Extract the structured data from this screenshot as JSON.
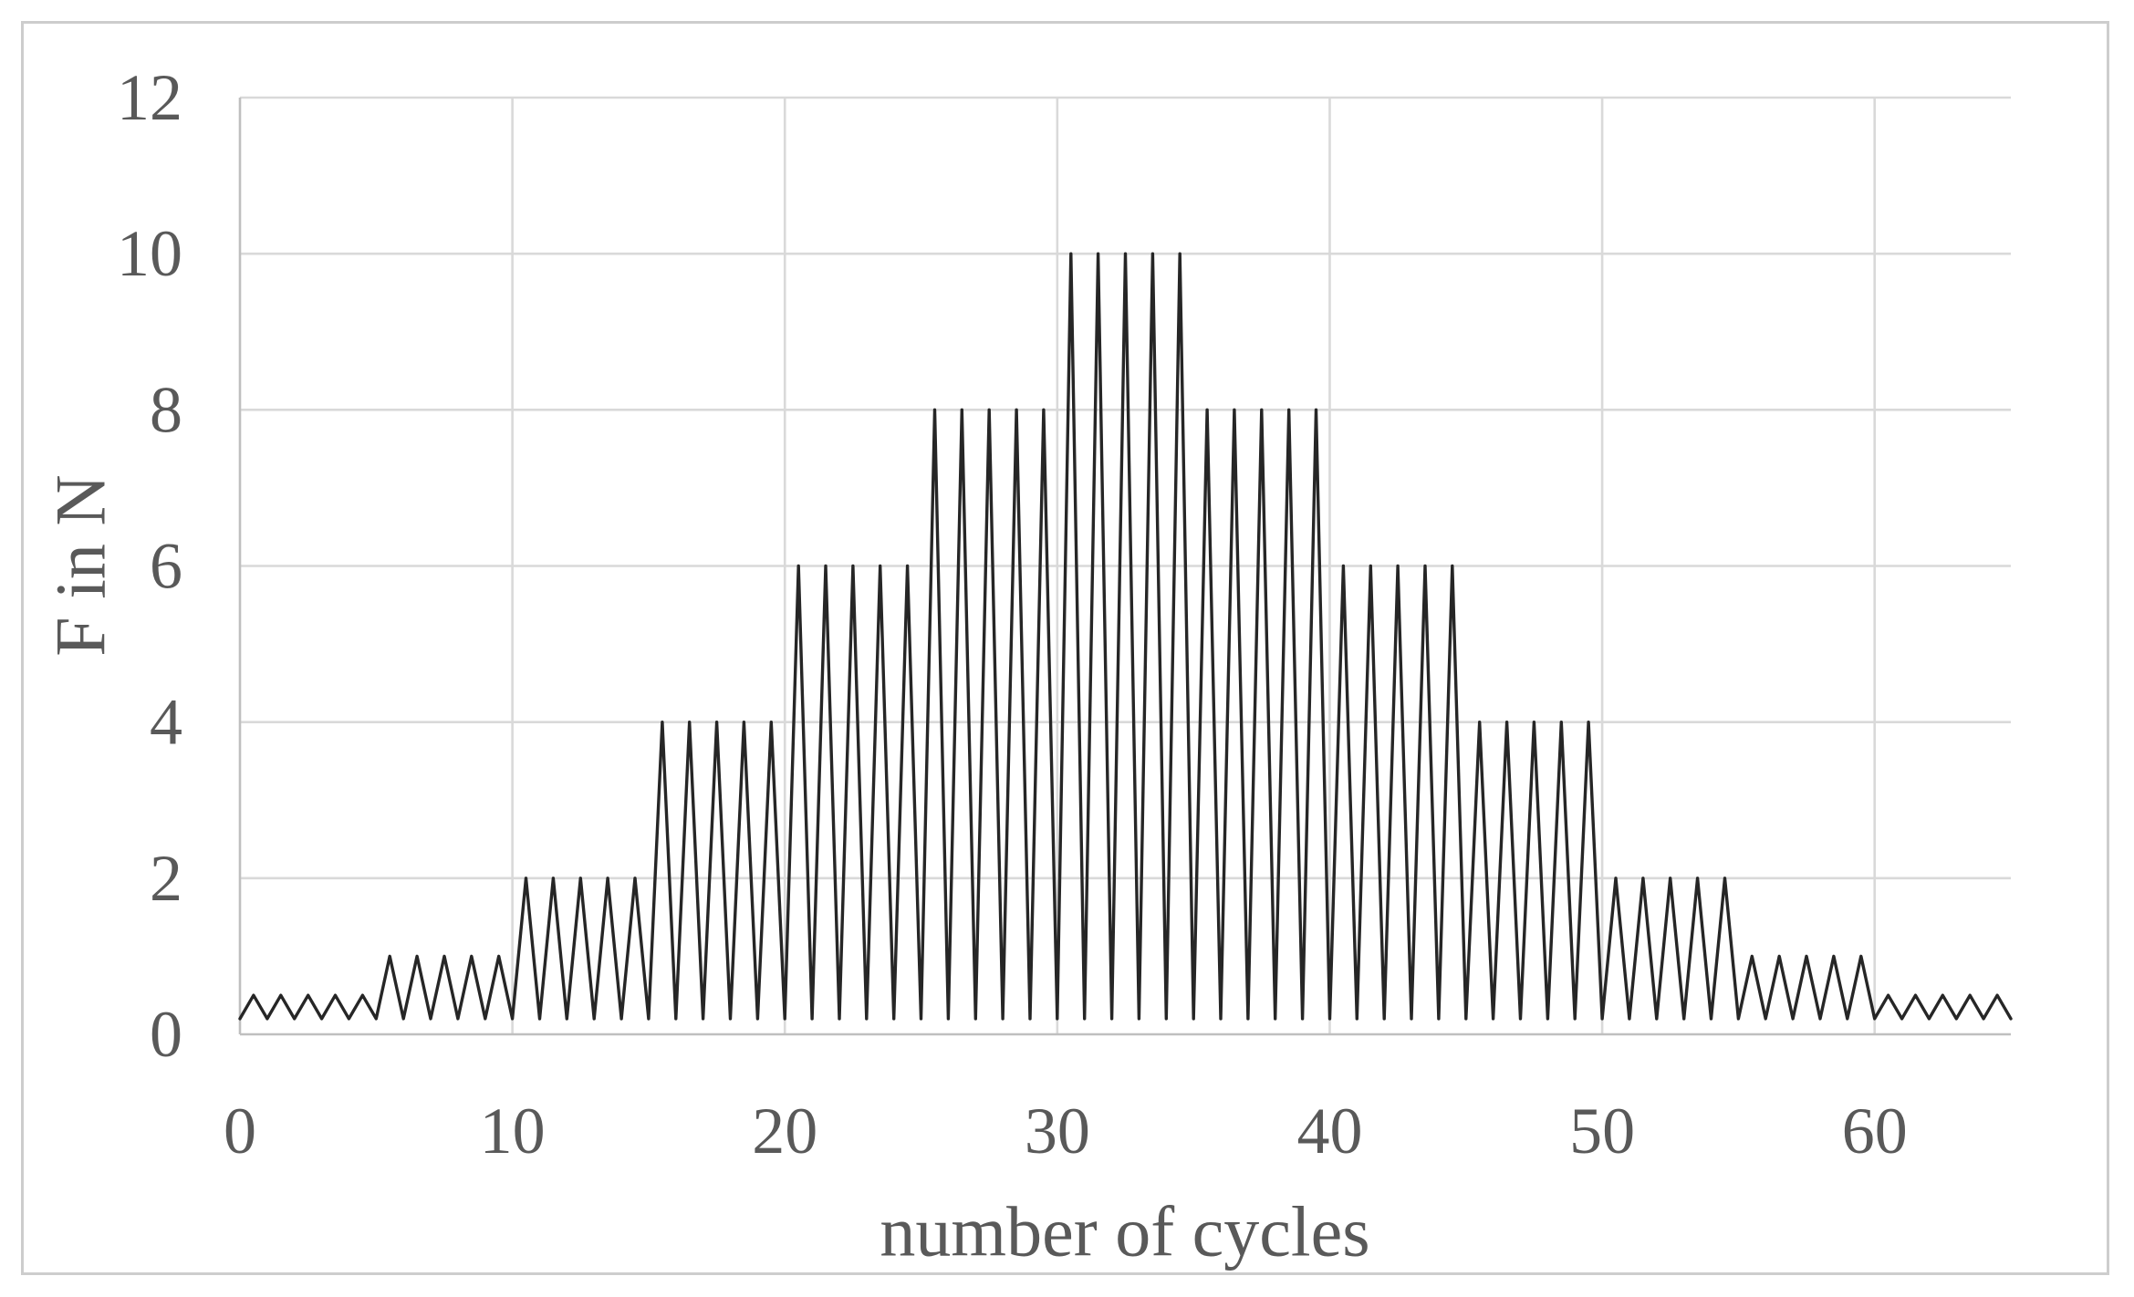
{
  "figure": {
    "background": "#ffffff",
    "border_color": "#cdcdcd"
  },
  "chart_data": {
    "type": "line",
    "title": "",
    "xlabel": "number of cycles",
    "ylabel": "F in N",
    "xlim": [
      0,
      65
    ],
    "ylim": [
      0,
      12
    ],
    "x_ticks": [
      0,
      10,
      20,
      30,
      40,
      50,
      60
    ],
    "y_ticks": [
      0,
      2,
      4,
      6,
      8,
      10,
      12
    ],
    "grid": true,
    "legend": false,
    "colors": {
      "gridline": "#d9d9d9",
      "axis_line": "#bfbfbf",
      "text": "#595959",
      "series": "#262626"
    },
    "series": [
      {
        "name": "F in N",
        "color": "#262626",
        "baseline": 0.2,
        "cycle_width": 1,
        "cycles_total": 65,
        "block_size": 5,
        "block_peak_values": [
          0.5,
          1,
          2,
          4,
          6,
          8,
          10,
          8,
          6,
          4,
          2,
          1,
          0.5
        ],
        "peaks_per_cycle": [
          0.5,
          0.5,
          0.5,
          0.5,
          0.5,
          1,
          1,
          1,
          1,
          1,
          2,
          2,
          2,
          2,
          2,
          4,
          4,
          4,
          4,
          4,
          6,
          6,
          6,
          6,
          6,
          8,
          8,
          8,
          8,
          8,
          10,
          10,
          10,
          10,
          10,
          8,
          8,
          8,
          8,
          8,
          6,
          6,
          6,
          6,
          6,
          4,
          4,
          4,
          4,
          4,
          2,
          2,
          2,
          2,
          2,
          1,
          1,
          1,
          1,
          1,
          0.5,
          0.5,
          0.5,
          0.5,
          0.5
        ]
      }
    ]
  }
}
